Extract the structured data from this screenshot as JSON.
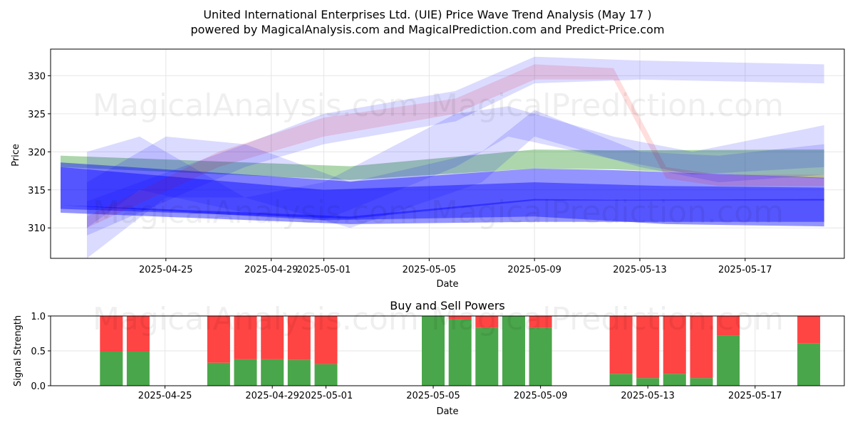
{
  "header": {
    "title": "United International Enterprises Ltd. (UIE) Price Wave Trend Analysis (May 17 )",
    "subtitle": "powered by MagicalAnalysis.com and MagicalPrediction.com and Predict-Price.com"
  },
  "watermarks": [
    "MagicalAnalysis.com",
    "MagicalPrediction.com"
  ],
  "chart_data": [
    {
      "type": "area",
      "title": "",
      "xlabel": "Date",
      "ylabel": "Price",
      "x_tick_labels": [
        "2025-04-25",
        "2025-04-29",
        "2025-05-01",
        "2025-05-05",
        "2025-05-09",
        "2025-05-13",
        "2025-05-17"
      ],
      "y_ticks": [
        310,
        315,
        320,
        325,
        330
      ],
      "xlim": [
        "2025-04-21",
        "2025-05-20"
      ],
      "ylim": [
        306,
        333.5
      ],
      "grid": true,
      "colors": {
        "blue": "#0000ff",
        "green": "#008000",
        "red": "#ff0000"
      },
      "series": [
        {
          "color": "#008000",
          "x": [
            "2025-04-21",
            "2025-05-02",
            "2025-05-09",
            "2025-05-12",
            "2025-05-20"
          ],
          "upper": [
            319.5,
            318.1,
            320.3,
            320.2,
            320.3
          ],
          "lower": [
            318.0,
            316.3,
            317.8,
            317.7,
            316.5
          ]
        },
        {
          "color": "#0000ff",
          "x": [
            "2025-04-21",
            "2025-05-02",
            "2025-05-09",
            "2025-05-12",
            "2025-05-20"
          ],
          "upper": [
            318.6,
            316.1,
            317.8,
            317.6,
            316.6
          ],
          "lower": [
            312.5,
            311.2,
            313.6,
            313.6,
            313.6
          ]
        },
        {
          "color": "#0000ff",
          "x": [
            "2025-04-21",
            "2025-05-02",
            "2025-05-09",
            "2025-05-12",
            "2025-05-20"
          ],
          "upper": [
            313.0,
            311.5,
            313.8,
            313.7,
            313.8
          ],
          "lower": [
            312.0,
            310.5,
            310.8,
            310.8,
            310.8
          ]
        },
        {
          "color": "#0000ff",
          "x": [
            "2025-04-21",
            "2025-04-26",
            "2025-05-01",
            "2025-05-09",
            "2025-05-14",
            "2025-05-20"
          ],
          "upper": [
            318.0,
            316.5,
            315.0,
            316.0,
            315.5,
            315.3
          ],
          "lower": [
            313.0,
            312.0,
            311.0,
            311.5,
            310.5,
            310.2
          ]
        },
        {
          "color": "#ff0000",
          "x": [
            "2025-04-22",
            "2025-04-27",
            "2025-05-01",
            "2025-05-06",
            "2025-05-09",
            "2025-05-12",
            "2025-05-14",
            "2025-05-16",
            "2025-05-20"
          ],
          "upper": [
            311.5,
            320.0,
            324.5,
            327.0,
            331.5,
            331.0,
            318.0,
            317.0,
            317.0
          ],
          "lower": [
            310.0,
            318.0,
            322.0,
            325.0,
            329.5,
            329.5,
            316.5,
            315.5,
            315.5
          ]
        },
        {
          "color": "#0000ff",
          "x": [
            "2025-04-22",
            "2025-04-28",
            "2025-05-01",
            "2025-05-06",
            "2025-05-09",
            "2025-05-13",
            "2025-05-20"
          ],
          "upper": [
            313.5,
            321.0,
            325.0,
            328.0,
            332.5,
            332.0,
            331.5
          ],
          "lower": [
            309.0,
            318.0,
            321.0,
            324.0,
            329.0,
            329.5,
            329.0
          ]
        },
        {
          "color": "#0000ff",
          "x": [
            "2025-04-22",
            "2025-04-25",
            "2025-04-28",
            "2025-05-02",
            "2025-05-07",
            "2025-05-09",
            "2025-05-13",
            "2025-05-16",
            "2025-05-20"
          ],
          "upper": [
            316.0,
            322.0,
            321.0,
            316.0,
            320.0,
            325.5,
            320.0,
            319.5,
            321.0
          ],
          "lower": [
            306.0,
            314.0,
            314.0,
            310.0,
            316.0,
            322.0,
            318.0,
            316.0,
            317.0
          ]
        },
        {
          "color": "#0000ff",
          "x": [
            "2025-04-22",
            "2025-04-24",
            "2025-04-28",
            "2025-05-01",
            "2025-05-06",
            "2025-05-08",
            "2025-05-12",
            "2025-05-15",
            "2025-05-20"
          ],
          "upper": [
            320.0,
            322.0,
            314.0,
            316.0,
            325.0,
            326.0,
            322.0,
            320.0,
            323.5
          ],
          "lower": [
            310.0,
            315.0,
            312.0,
            311.0,
            318.0,
            322.0,
            319.0,
            317.0,
            318.0
          ]
        }
      ]
    },
    {
      "type": "bar",
      "title": "Buy and Sell Powers",
      "xlabel": "Date",
      "ylabel": "Signal Strength",
      "x_tick_labels": [
        "2025-04-25",
        "2025-04-29",
        "2025-05-01",
        "2025-05-05",
        "2025-05-09",
        "2025-05-13",
        "2025-05-17"
      ],
      "y_ticks": [
        "0.0",
        "0.5",
        "1.0"
      ],
      "ylim": [
        0,
        1
      ],
      "grid": true,
      "colors": {
        "buy": "#4aa64a",
        "sell": "#ff4444"
      },
      "categories": [
        "2025-04-23",
        "2025-04-24",
        "2025-04-27",
        "2025-04-28",
        "2025-04-29",
        "2025-04-30",
        "2025-05-01",
        "2025-05-05",
        "2025-05-06",
        "2025-05-07",
        "2025-05-08",
        "2025-05-09",
        "2025-05-12",
        "2025-05-13",
        "2025-05-14",
        "2025-05-15",
        "2025-05-16",
        "2025-05-19"
      ],
      "series": [
        {
          "name": "buy",
          "values": [
            0.49,
            0.49,
            0.33,
            0.38,
            0.38,
            0.37,
            0.31,
            1.0,
            0.95,
            0.83,
            1.0,
            0.83,
            0.17,
            0.11,
            0.17,
            0.11,
            0.72,
            0.61
          ]
        },
        {
          "name": "sell",
          "values": [
            0.51,
            0.51,
            0.67,
            0.62,
            0.62,
            0.63,
            0.69,
            0.0,
            0.05,
            0.17,
            0.0,
            0.17,
            0.83,
            0.89,
            0.83,
            0.89,
            0.28,
            0.39
          ]
        }
      ]
    }
  ]
}
